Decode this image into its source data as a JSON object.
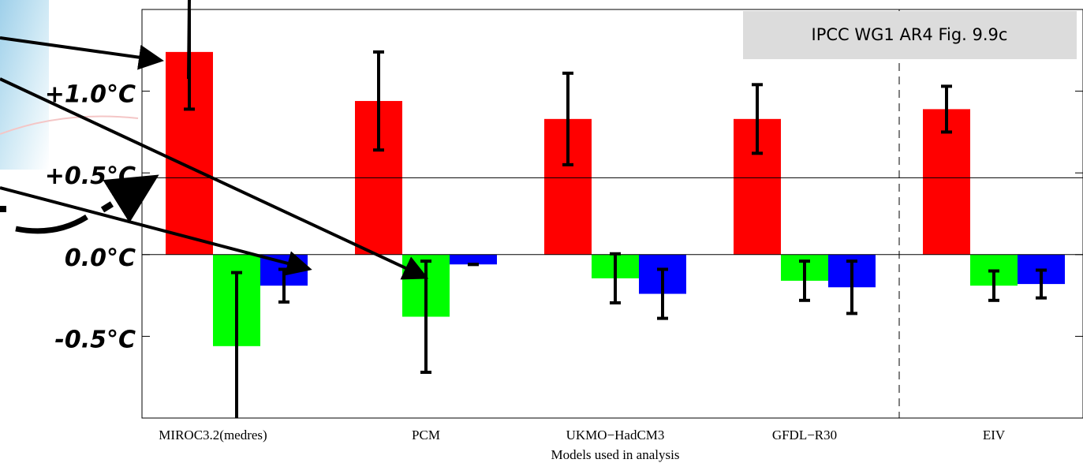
{
  "chart_data": {
    "type": "bar",
    "annotation": "IPCC WG1 AR4 Fig. 9.9c",
    "x_label": "Models used in analysis",
    "categories": [
      "MIROC3.2(medres)",
      "PCM",
      "UKMO−HadCM3",
      "GFDL−R30",
      "EIV"
    ],
    "series": [
      {
        "color": "#ff0000",
        "values": [
          1.24,
          0.94,
          0.83,
          0.83,
          0.89
        ],
        "errors": [
          0.35,
          0.3,
          0.28,
          0.21,
          0.14
        ]
      },
      {
        "color": "#00ff00",
        "values": [
          -0.56,
          -0.38,
          -0.145,
          -0.16,
          -0.19
        ],
        "errors": [
          0.45,
          0.34,
          0.15,
          0.12,
          0.09
        ]
      },
      {
        "color": "#0000ff",
        "values": [
          -0.19,
          -0.06,
          -0.24,
          -0.2,
          -0.18
        ],
        "errors": [
          0.1,
          0.0,
          0.15,
          0.16,
          0.085
        ]
      }
    ],
    "ylim": [
      -1.0,
      1.5
    ],
    "yticks": [
      {
        "value": -0.5,
        "label": "-0.5°C"
      },
      {
        "value": 0.0,
        "label": "0.0°C"
      },
      {
        "value": 0.5,
        "label": "+0.5°C"
      },
      {
        "value": 1.0,
        "label": "+1.0°C"
      }
    ],
    "hlines": [
      0,
      0.47
    ]
  }
}
